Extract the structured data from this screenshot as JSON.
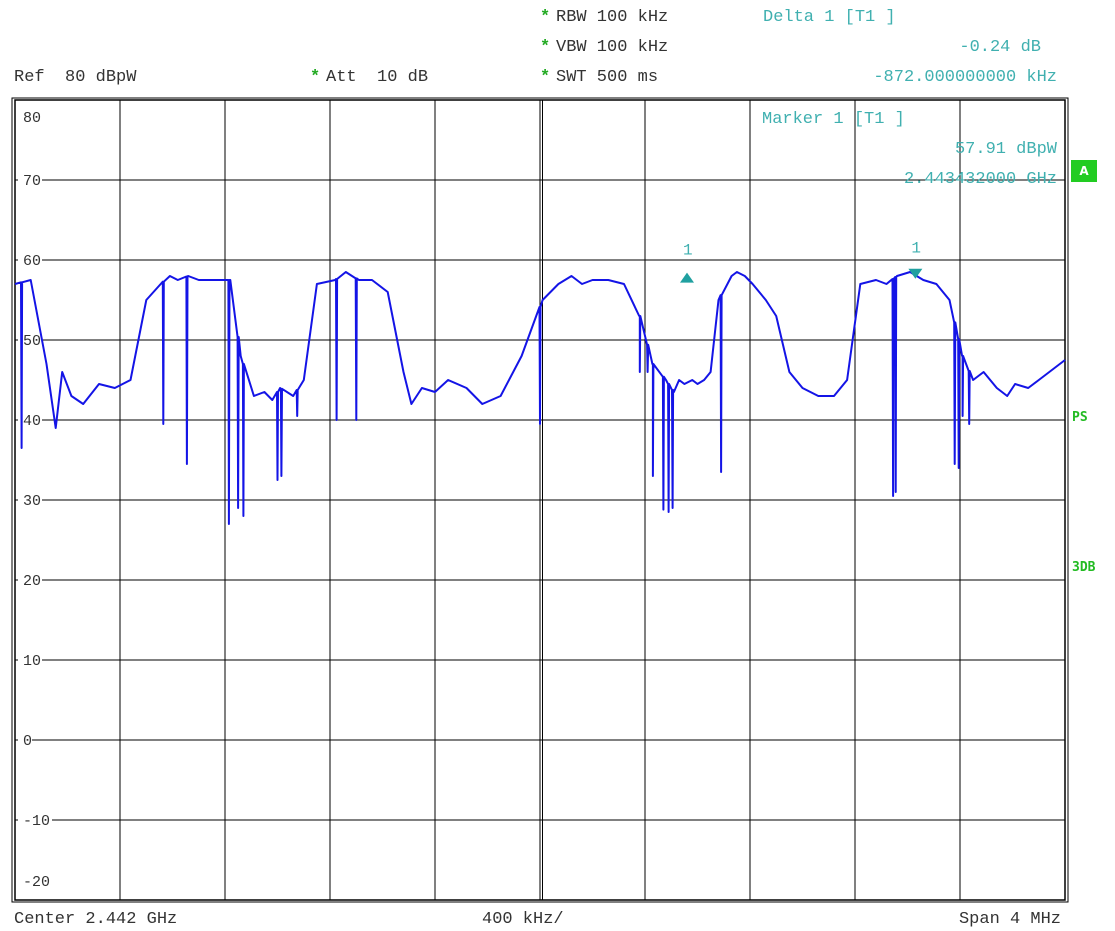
{
  "header": {
    "rbw": "RBW 100 kHz",
    "vbw": "VBW 100 kHz",
    "swt": "SWT 500 ms",
    "att": "Att  10 dB",
    "ref": "Ref  80 dBpW",
    "star": "*"
  },
  "delta_marker": {
    "label": "Delta 1 [T1 ]",
    "level": "-0.24 dB",
    "freq": "-872.000000000 kHz"
  },
  "marker": {
    "label": "Marker 1 [T1 ]",
    "level": "57.91 dBpW",
    "freq": "2.443432000 GHz",
    "tag": "1"
  },
  "footer": {
    "center": "Center 2.442 GHz",
    "div": "400 kHz/",
    "span": "Span 4 MHz"
  },
  "side_labels": {
    "a": "A",
    "ps": "PS",
    "db3": "3DB"
  },
  "colors": {
    "trace": "#1414e6",
    "marker": "#20a0a0",
    "annotation": "#40b0b0",
    "badge": "#22cc22"
  },
  "chart_data": {
    "type": "line",
    "ytick_labels": [
      "80",
      "70",
      "60",
      "50",
      "40",
      "30",
      "20",
      "10",
      "0",
      "-10",
      "-20"
    ],
    "ylim": [
      -20,
      80
    ],
    "xlim": [
      2.44,
      2.444
    ],
    "x_unit": "GHz",
    "y_unit": "dBpW",
    "grid": true,
    "series": [
      {
        "x": [
          2.44,
          2.44006,
          2.44012,
          2.440155,
          2.44018,
          2.440215,
          2.44026,
          2.44032,
          2.44038,
          2.44044,
          2.4405,
          2.440555,
          2.44059,
          2.44062,
          2.44066,
          2.4407,
          2.44075,
          2.44082,
          2.44086,
          2.44091,
          2.44095,
          2.44098,
          2.44101,
          2.44106,
          2.4411,
          2.44115,
          2.44122,
          2.44126,
          2.44131,
          2.44136,
          2.44142,
          2.44148,
          2.44151,
          2.44155,
          2.4416,
          2.44165,
          2.44172,
          2.44178,
          2.44185,
          2.44193,
          2.44201,
          2.44207,
          2.44212,
          2.44216,
          2.4422,
          2.44226,
          2.44232,
          2.44238,
          2.44243,
          2.44248,
          2.44251,
          2.44253,
          2.44255,
          2.44258,
          2.4426,
          2.442625,
          2.44265,
          2.44268,
          2.44273,
          2.44275,
          2.44278,
          2.44281,
          2.44286,
          2.4429,
          2.44295,
          2.443,
          2.44306,
          2.44312,
          2.44317,
          2.44322,
          2.44328,
          2.44332,
          2.44336,
          2.44341,
          2.44346,
          2.44351,
          2.44356,
          2.44361,
          2.44365,
          2.44369,
          2.44374,
          2.44378,
          2.44381,
          2.44386,
          2.4439,
          2.44394,
          2.444
        ],
        "y": [
          57,
          57.5,
          47,
          39,
          46,
          43,
          42,
          44.5,
          44,
          45,
          55,
          57,
          58,
          57.5,
          58,
          57.5,
          57.5,
          57.5,
          48,
          43,
          43.5,
          42.5,
          44,
          43,
          45,
          57,
          57.5,
          58.5,
          57.5,
          57.5,
          56,
          46,
          42,
          44,
          43.5,
          45,
          44,
          42,
          43,
          48,
          55,
          57,
          58,
          57,
          57.5,
          57.5,
          57,
          53,
          47,
          45,
          43.5,
          45,
          44.5,
          45,
          44.5,
          45,
          46,
          55,
          58,
          58.5,
          58,
          57,
          55,
          53,
          46,
          44,
          43,
          43,
          45,
          57,
          57.5,
          57,
          58,
          58.5,
          57.5,
          57,
          55,
          48,
          45,
          46,
          44,
          43,
          44.5,
          44,
          45,
          46,
          47.5
        ]
      }
    ],
    "marker_1": {
      "x": 2.44343,
      "y": 57.91
    },
    "delta_1": {
      "x": 2.44256,
      "y": 57.67
    },
    "dropouts": [
      {
        "x": 2.440025,
        "y": 36.5
      },
      {
        "x": 2.440565,
        "y": 39.5
      },
      {
        "x": 2.440655,
        "y": 34.5
      },
      {
        "x": 2.440815,
        "y": 27
      },
      {
        "x": 2.44085,
        "y": 29
      },
      {
        "x": 2.44087,
        "y": 28
      },
      {
        "x": 2.441,
        "y": 32.5
      },
      {
        "x": 2.441015,
        "y": 33
      },
      {
        "x": 2.441075,
        "y": 40.5
      },
      {
        "x": 2.441225,
        "y": 40
      },
      {
        "x": 2.4413,
        "y": 40
      },
      {
        "x": 2.442,
        "y": 39.5
      },
      {
        "x": 2.44238,
        "y": 46
      },
      {
        "x": 2.44241,
        "y": 46
      },
      {
        "x": 2.44243,
        "y": 33
      },
      {
        "x": 2.44247,
        "y": 28.8
      },
      {
        "x": 2.44249,
        "y": 28.5
      },
      {
        "x": 2.442505,
        "y": 29
      },
      {
        "x": 2.44269,
        "y": 33.5
      },
      {
        "x": 2.443345,
        "y": 30.5
      },
      {
        "x": 2.443355,
        "y": 31
      },
      {
        "x": 2.44358,
        "y": 34.5
      },
      {
        "x": 2.443595,
        "y": 34
      },
      {
        "x": 2.44361,
        "y": 40.5
      },
      {
        "x": 2.443635,
        "y": 39.5
      }
    ]
  }
}
